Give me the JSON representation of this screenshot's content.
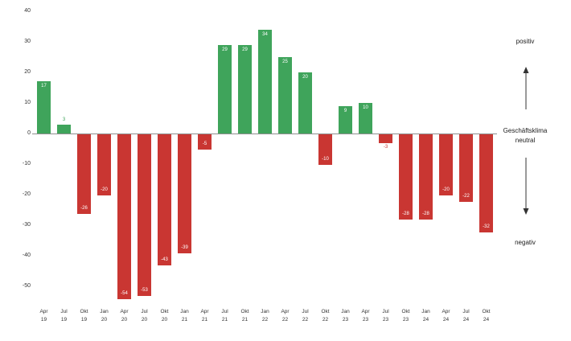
{
  "chart_data": {
    "type": "bar",
    "title": "",
    "xlabel": "",
    "ylabel": "",
    "ylim": [
      -60,
      40
    ],
    "grid": false,
    "legend": "none",
    "yticks": [
      40,
      30,
      20,
      10,
      0,
      -10,
      -20,
      -30,
      -40,
      -50
    ],
    "categories": [
      {
        "month": "Apr",
        "year": "19"
      },
      {
        "month": "Jul",
        "year": "19"
      },
      {
        "month": "Okt",
        "year": "19"
      },
      {
        "month": "Jan",
        "year": "20"
      },
      {
        "month": "Apr",
        "year": "20"
      },
      {
        "month": "Jul",
        "year": "20"
      },
      {
        "month": "Okt",
        "year": "20"
      },
      {
        "month": "Jan",
        "year": "21"
      },
      {
        "month": "Apr",
        "year": "21"
      },
      {
        "month": "Jul",
        "year": "21"
      },
      {
        "month": "Okt",
        "year": "21"
      },
      {
        "month": "Jan",
        "year": "22"
      },
      {
        "month": "Apr",
        "year": "22"
      },
      {
        "month": "Jul",
        "year": "22"
      },
      {
        "month": "Okt",
        "year": "22"
      },
      {
        "month": "Jan",
        "year": "23"
      },
      {
        "month": "Apr",
        "year": "23"
      },
      {
        "month": "Jul",
        "year": "23"
      },
      {
        "month": "Okt",
        "year": "23"
      },
      {
        "month": "Jan",
        "year": "24"
      },
      {
        "month": "Apr",
        "year": "24"
      },
      {
        "month": "Jul",
        "year": "24"
      },
      {
        "month": "Okt",
        "year": "24"
      }
    ],
    "values": [
      17,
      3,
      -26,
      -20,
      -54,
      -53,
      -43,
      -39,
      -5,
      29,
      29,
      34,
      25,
      20,
      -10,
      9,
      10,
      -3,
      -28,
      -28,
      -20,
      -22,
      -32
    ],
    "colors": {
      "positive": "#3fa45b",
      "negative": "#c93632",
      "value_label_inside": "#ffffff",
      "axis_line": "#909090",
      "tick_text": "#333333"
    },
    "annotations": {
      "positive": "positiv",
      "neutral_line1": "Geschäftsklima",
      "neutral_line2": "neutral",
      "negative": "negativ"
    }
  }
}
